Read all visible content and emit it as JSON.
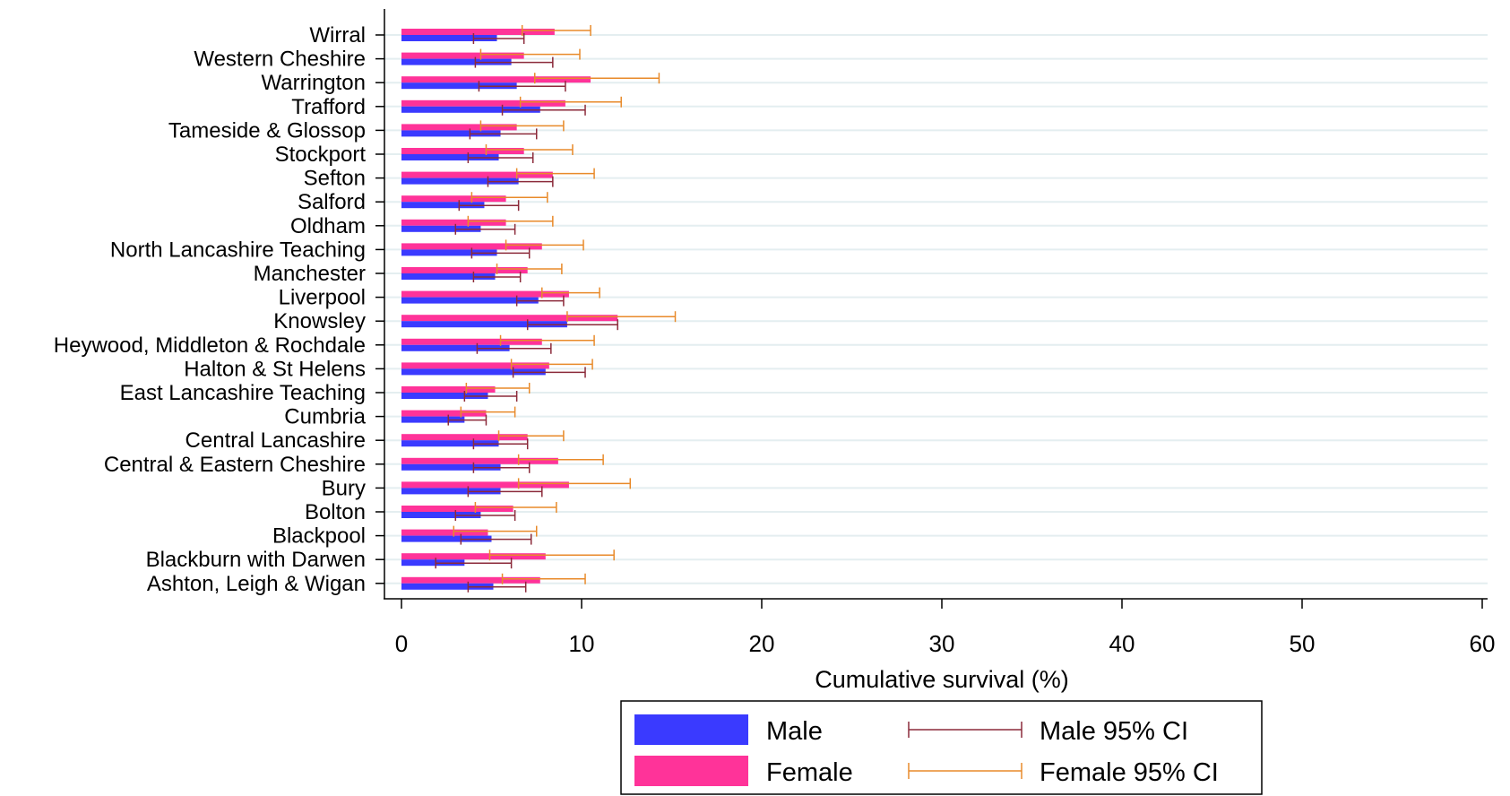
{
  "chart_data": {
    "type": "bar",
    "orientation": "horizontal",
    "xlabel": "Cumulative survival (%)",
    "xlim": [
      0,
      60
    ],
    "xticks": [
      0,
      10,
      20,
      30,
      40,
      50,
      60
    ],
    "grid": true,
    "legend_position": "bottom",
    "categories": [
      "Wirral",
      "Western Cheshire",
      "Warrington",
      "Trafford",
      "Tameside & Glossop",
      "Stockport",
      "Sefton",
      "Salford",
      "Oldham",
      "North Lancashire Teaching",
      "Manchester",
      "Liverpool",
      "Knowsley",
      "Heywood, Middleton & Rochdale",
      "Halton & St Helens",
      "East Lancashire Teaching",
      "Cumbria",
      "Central Lancashire",
      "Central & Eastern Cheshire",
      "Bury",
      "Bolton",
      "Blackpool",
      "Blackburn with Darwen",
      "Ashton, Leigh & Wigan"
    ],
    "series": [
      {
        "name": "Male",
        "color": "#3a3aff",
        "values": [
          5.3,
          6.1,
          6.4,
          7.7,
          5.5,
          5.4,
          6.5,
          4.6,
          4.4,
          5.3,
          5.2,
          7.6,
          9.2,
          6.0,
          8.0,
          4.8,
          3.5,
          5.4,
          5.5,
          5.5,
          4.4,
          5.0,
          3.5,
          5.1
        ],
        "ci_low": [
          4.0,
          4.1,
          4.3,
          5.6,
          3.8,
          3.7,
          4.8,
          3.2,
          3.0,
          3.9,
          4.0,
          6.4,
          7.0,
          4.2,
          6.2,
          3.5,
          2.6,
          4.0,
          4.0,
          3.7,
          3.0,
          3.3,
          1.9,
          3.7
        ],
        "ci_high": [
          6.8,
          8.4,
          9.1,
          10.2,
          7.5,
          7.3,
          8.4,
          6.5,
          6.3,
          7.1,
          6.6,
          9.0,
          12.0,
          8.3,
          10.2,
          6.4,
          4.7,
          7.0,
          7.1,
          7.8,
          6.3,
          7.2,
          6.1,
          6.9
        ]
      },
      {
        "name": "Female",
        "color": "#ff3399",
        "values": [
          8.5,
          6.8,
          10.5,
          9.1,
          6.4,
          6.8,
          8.4,
          5.8,
          5.8,
          7.8,
          7.0,
          9.3,
          12.0,
          7.8,
          8.2,
          5.2,
          4.7,
          7.0,
          8.7,
          9.3,
          6.2,
          4.8,
          8.0,
          7.7
        ],
        "ci_low": [
          6.7,
          4.4,
          7.4,
          6.6,
          4.4,
          4.7,
          6.4,
          3.9,
          3.7,
          5.8,
          5.3,
          7.8,
          9.2,
          5.5,
          6.1,
          3.6,
          3.3,
          5.4,
          6.5,
          6.5,
          4.1,
          2.9,
          4.9,
          5.6
        ],
        "ci_high": [
          10.5,
          9.9,
          14.3,
          12.2,
          9.0,
          9.5,
          10.7,
          8.1,
          8.4,
          10.1,
          8.9,
          11.0,
          15.2,
          10.7,
          10.6,
          7.1,
          6.3,
          9.0,
          11.2,
          12.7,
          8.6,
          7.5,
          11.8,
          10.2
        ]
      }
    ],
    "legend": {
      "male": "Male",
      "female": "Female",
      "male_ci": "Male 95% CI",
      "female_ci": "Female 95% CI",
      "male_ci_color": "#8b2a3a",
      "female_ci_color": "#e88a2a"
    }
  }
}
